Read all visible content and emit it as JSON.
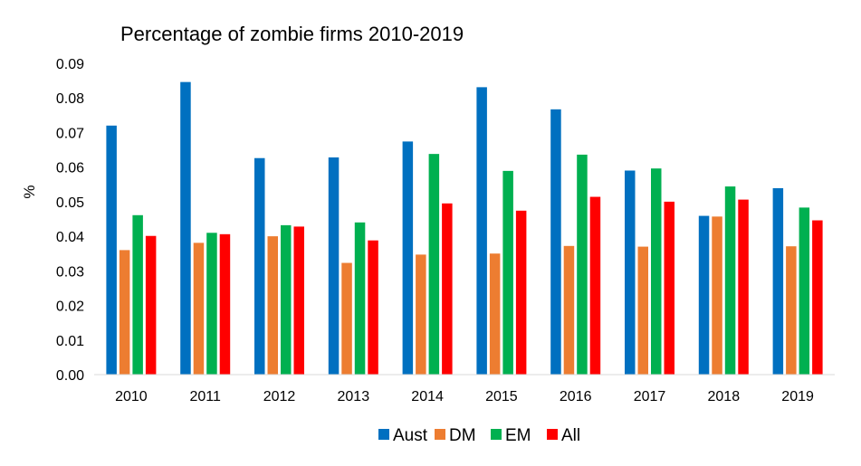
{
  "chart_data": {
    "type": "bar",
    "title": "Percentage of zombie firms 2010-2019",
    "ylabel": "%",
    "xlabel": "",
    "categories": [
      "2010",
      "2011",
      "2012",
      "2013",
      "2014",
      "2015",
      "2016",
      "2017",
      "2018",
      "2019"
    ],
    "series": [
      {
        "name": "Aust",
        "color": "#0070C0",
        "values": [
          0.072,
          0.0846,
          0.0626,
          0.0628,
          0.0674,
          0.0831,
          0.0767,
          0.059,
          0.0459,
          0.0539
        ]
      },
      {
        "name": "DM",
        "color": "#ED7D31",
        "values": [
          0.036,
          0.0381,
          0.04,
          0.0323,
          0.0347,
          0.035,
          0.0372,
          0.037,
          0.0457,
          0.0371
        ]
      },
      {
        "name": "EM",
        "color": "#00B050",
        "values": [
          0.0461,
          0.041,
          0.0432,
          0.044,
          0.0638,
          0.0589,
          0.0636,
          0.0596,
          0.0544,
          0.0483
        ]
      },
      {
        "name": "All",
        "color": "#FF0000",
        "values": [
          0.0401,
          0.0406,
          0.0428,
          0.0388,
          0.0495,
          0.0474,
          0.0514,
          0.05,
          0.0506,
          0.0446
        ]
      }
    ],
    "ylim": [
      0,
      0.09
    ],
    "yticks": [
      "0.00",
      "0.01",
      "0.02",
      "0.03",
      "0.04",
      "0.05",
      "0.06",
      "0.07",
      "0.08",
      "0.09"
    ],
    "grid": false,
    "legend_position": "bottom"
  }
}
